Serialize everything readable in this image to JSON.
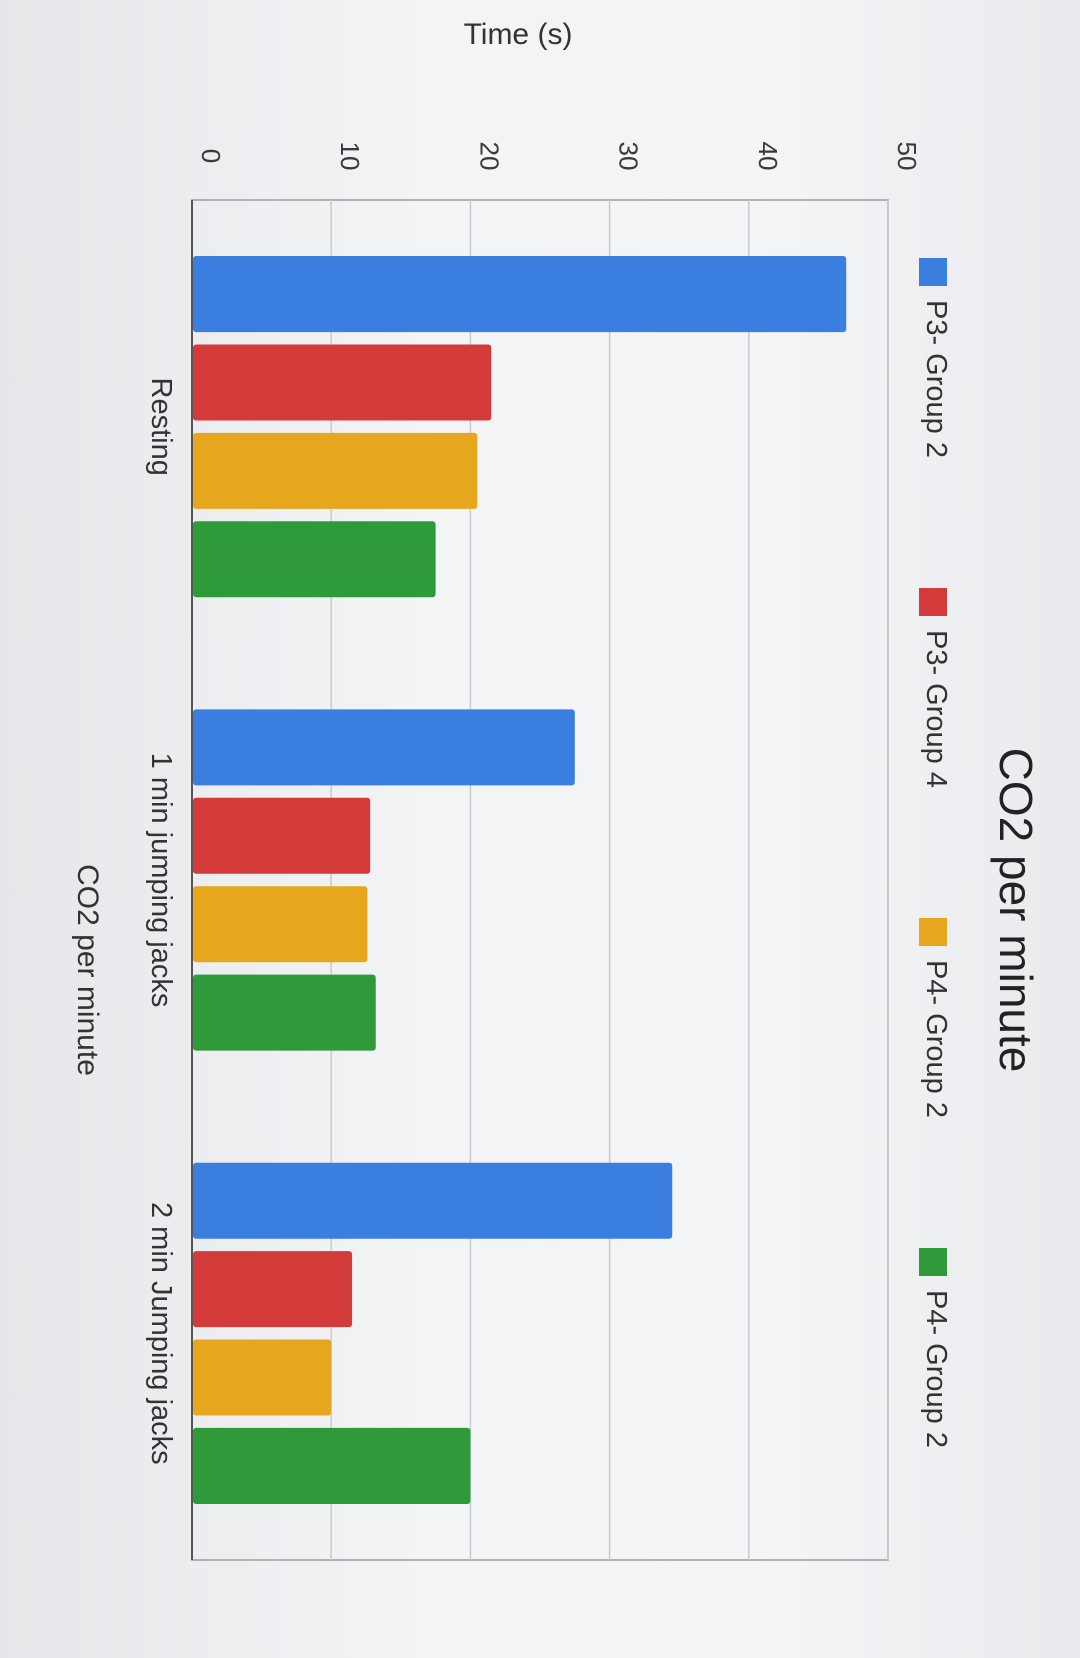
{
  "chart_data": {
    "type": "bar",
    "title": "CO2 per minute",
    "xlabel": "CO2 per minute",
    "ylabel": "Time (s)",
    "ylim": [
      0,
      50
    ],
    "yticks": [
      0,
      10,
      20,
      30,
      40,
      50
    ],
    "grid": true,
    "legend_position": "top",
    "orientation": "rotated 90 degrees clockwise",
    "categories": [
      "Resting",
      "1 min jumping jacks",
      "2 min Jumping jacks"
    ],
    "series": [
      {
        "name": "P3- Group 2",
        "color": "#3a7fe0",
        "values": [
          47,
          27.5,
          34.5
        ]
      },
      {
        "name": "P3- Group 4",
        "color": "#d33a3a",
        "values": [
          21.5,
          12.8,
          11.5
        ]
      },
      {
        "name": "P4- Group 2",
        "color": "#e6a71f",
        "values": [
          20.5,
          12.6,
          10
        ]
      },
      {
        "name": "P4- Group 2",
        "color": "#2e9a3a",
        "values": [
          17.5,
          13.2,
          20
        ]
      }
    ]
  }
}
